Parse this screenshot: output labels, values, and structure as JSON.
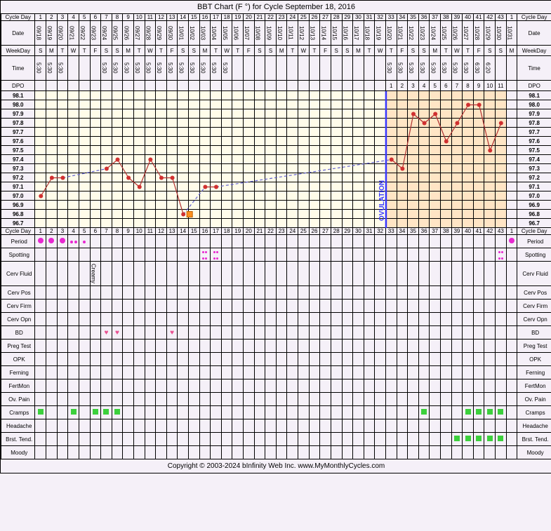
{
  "title": "BBT Chart (F °) for Cycle September 18, 2016",
  "footer": "Copyright © 2003-2024 bInfinity Web Inc.    www.MyMonthlyCycles.com",
  "labels": {
    "cycleDay": "Cycle Day",
    "date": "Date",
    "weekday": "WeekDay",
    "time": "Time",
    "dpo": "DPO",
    "period": "Period",
    "spotting": "Spotting",
    "cervFluid": "Cerv Fluid",
    "cervPos": "Cerv Pos",
    "cervFirm": "Cerv Firm",
    "cervOpn": "Cerv Opn",
    "bd": "BD",
    "pregTest": "Preg Test",
    "opk": "OPK",
    "ferning": "Ferning",
    "fertMon": "FertMon",
    "ovPain": "Ov. Pain",
    "cramps": "Cramps",
    "headache": "Headache",
    "brstTend": "Brst. Tend.",
    "moody": "Moody",
    "ovulation": "OVULATION",
    "creamy": "Creamy"
  },
  "tempScale": [
    "98.1",
    "98.0",
    "97.9",
    "97.8",
    "97.7",
    "97.6",
    "97.5",
    "97.4",
    "97.3",
    "97.2",
    "97.1",
    "97.0",
    "96.9",
    "96.8",
    "96.7"
  ],
  "days": [
    {
      "cd": 1,
      "date": "09/18",
      "wd": "S",
      "time": "5:30",
      "dpo": "",
      "phase": "f",
      "temp": 97.0,
      "period": "full",
      "cramps": true
    },
    {
      "cd": 2,
      "date": "09/19",
      "wd": "M",
      "time": "5:30",
      "dpo": "",
      "phase": "f",
      "temp": 97.2,
      "period": "full"
    },
    {
      "cd": 3,
      "date": "09/20",
      "wd": "T",
      "time": "5:30",
      "dpo": "",
      "phase": "f",
      "temp": 97.2,
      "period": "full"
    },
    {
      "cd": 4,
      "date": "09/21",
      "wd": "W",
      "time": "",
      "dpo": "",
      "phase": "f",
      "period": "light",
      "cramps": true
    },
    {
      "cd": 5,
      "date": "09/22",
      "wd": "T",
      "time": "",
      "dpo": "",
      "phase": "f",
      "period": "spotting"
    },
    {
      "cd": 6,
      "date": "09/23",
      "wd": "F",
      "time": "",
      "dpo": "",
      "phase": "f",
      "cervFluid": "Creamy",
      "cramps": true
    },
    {
      "cd": 7,
      "date": "09/24",
      "wd": "S",
      "time": "5:30",
      "dpo": "",
      "phase": "f",
      "temp": 97.3,
      "bd": true,
      "cramps": true
    },
    {
      "cd": 8,
      "date": "09/25",
      "wd": "S",
      "time": "5:30",
      "dpo": "",
      "phase": "f",
      "temp": 97.4,
      "bd": true,
      "cramps": true
    },
    {
      "cd": 9,
      "date": "09/26",
      "wd": "M",
      "time": "5:30",
      "dpo": "",
      "phase": "f",
      "temp": 97.2
    },
    {
      "cd": 10,
      "date": "09/27",
      "wd": "T",
      "time": "5:30",
      "dpo": "",
      "phase": "f",
      "temp": 97.1
    },
    {
      "cd": 11,
      "date": "09/28",
      "wd": "W",
      "time": "5:30",
      "dpo": "",
      "phase": "f",
      "temp": 97.4
    },
    {
      "cd": 12,
      "date": "09/29",
      "wd": "T",
      "time": "5:30",
      "dpo": "",
      "phase": "f",
      "temp": 97.2
    },
    {
      "cd": 13,
      "date": "09/30",
      "wd": "F",
      "time": "5:30",
      "dpo": "",
      "phase": "f",
      "temp": 97.2,
      "bd": true
    },
    {
      "cd": 14,
      "date": "10/01",
      "wd": "S",
      "time": "5:30",
      "dpo": "",
      "phase": "f",
      "temp": 96.8,
      "flag": true
    },
    {
      "cd": 15,
      "date": "10/02",
      "wd": "S",
      "time": "5:30",
      "dpo": "",
      "phase": "f"
    },
    {
      "cd": 16,
      "date": "10/03",
      "wd": "M",
      "time": "5:30",
      "dpo": "",
      "phase": "f",
      "temp": 97.1,
      "spot": true
    },
    {
      "cd": 17,
      "date": "10/04",
      "wd": "T",
      "time": "5:30",
      "dpo": "",
      "phase": "f",
      "temp": 97.1,
      "spot": true
    },
    {
      "cd": 18,
      "date": "10/05",
      "wd": "W",
      "time": "5:30",
      "dpo": "",
      "phase": "f"
    },
    {
      "cd": 19,
      "date": "10/06",
      "wd": "T",
      "time": "",
      "dpo": "",
      "phase": "f"
    },
    {
      "cd": 20,
      "date": "10/07",
      "wd": "F",
      "time": "",
      "dpo": "",
      "phase": "f"
    },
    {
      "cd": 21,
      "date": "10/08",
      "wd": "S",
      "time": "",
      "dpo": "",
      "phase": "f"
    },
    {
      "cd": 22,
      "date": "10/09",
      "wd": "S",
      "time": "",
      "dpo": "",
      "phase": "f"
    },
    {
      "cd": 23,
      "date": "10/10",
      "wd": "M",
      "time": "",
      "dpo": "",
      "phase": "f"
    },
    {
      "cd": 24,
      "date": "10/11",
      "wd": "T",
      "time": "",
      "dpo": "",
      "phase": "f"
    },
    {
      "cd": 25,
      "date": "10/12",
      "wd": "W",
      "time": "",
      "dpo": "",
      "phase": "f"
    },
    {
      "cd": 26,
      "date": "10/13",
      "wd": "T",
      "time": "",
      "dpo": "",
      "phase": "f"
    },
    {
      "cd": 27,
      "date": "10/14",
      "wd": "F",
      "time": "",
      "dpo": "",
      "phase": "f"
    },
    {
      "cd": 28,
      "date": "10/15",
      "wd": "S",
      "time": "",
      "dpo": "",
      "phase": "f"
    },
    {
      "cd": 29,
      "date": "10/16",
      "wd": "S",
      "time": "",
      "dpo": "",
      "phase": "f"
    },
    {
      "cd": 30,
      "date": "10/17",
      "wd": "M",
      "time": "",
      "dpo": "",
      "phase": "f"
    },
    {
      "cd": 31,
      "date": "10/18",
      "wd": "T",
      "time": "",
      "dpo": "",
      "phase": "f"
    },
    {
      "cd": 32,
      "date": "10/19",
      "wd": "W",
      "time": "",
      "dpo": "",
      "phase": "f"
    },
    {
      "cd": 33,
      "date": "10/20",
      "wd": "T",
      "time": "5:30",
      "dpo": 1,
      "phase": "l",
      "temp": 97.4
    },
    {
      "cd": 34,
      "date": "10/21",
      "wd": "F",
      "time": "5:30",
      "dpo": 2,
      "phase": "l",
      "temp": 97.3
    },
    {
      "cd": 35,
      "date": "10/22",
      "wd": "S",
      "time": "5:30",
      "dpo": 3,
      "phase": "l",
      "temp": 97.9
    },
    {
      "cd": 36,
      "date": "10/23",
      "wd": "S",
      "time": "5:30",
      "dpo": 4,
      "phase": "l",
      "temp": 97.8,
      "cramps": true
    },
    {
      "cd": 37,
      "date": "10/24",
      "wd": "M",
      "time": "5:30",
      "dpo": 5,
      "phase": "l",
      "temp": 97.9
    },
    {
      "cd": 38,
      "date": "10/25",
      "wd": "T",
      "time": "5:30",
      "dpo": 6,
      "phase": "l",
      "temp": 97.6
    },
    {
      "cd": 39,
      "date": "10/26",
      "wd": "W",
      "time": "5:30",
      "dpo": 7,
      "phase": "l",
      "temp": 97.8,
      "brst": true
    },
    {
      "cd": 40,
      "date": "10/27",
      "wd": "T",
      "time": "5:30",
      "dpo": 8,
      "phase": "l",
      "temp": 98.0,
      "cramps": true,
      "brst": true
    },
    {
      "cd": 41,
      "date": "10/28",
      "wd": "F",
      "time": "6:30",
      "dpo": 9,
      "phase": "l",
      "temp": 98.0,
      "cramps": true,
      "brst": true
    },
    {
      "cd": 42,
      "date": "10/29",
      "wd": "S",
      "time": "6:20",
      "dpo": 10,
      "phase": "l",
      "temp": 97.5,
      "cramps": true,
      "brst": true
    },
    {
      "cd": 43,
      "date": "10/30",
      "wd": "S",
      "time": "",
      "dpo": 11,
      "phase": "l",
      "temp": 97.8,
      "spot": true,
      "cramps": true,
      "brst": true
    },
    {
      "cd": 1,
      "date": "10/31",
      "wd": "M",
      "time": "",
      "dpo": "",
      "phase": "",
      "period": "full"
    }
  ],
  "ovulationCol": 32,
  "chart": {
    "line_color": "#b03030",
    "point_color": "#d03030",
    "dash_color": "#6060d0",
    "point_r": 3,
    "line_w": 1.2
  }
}
